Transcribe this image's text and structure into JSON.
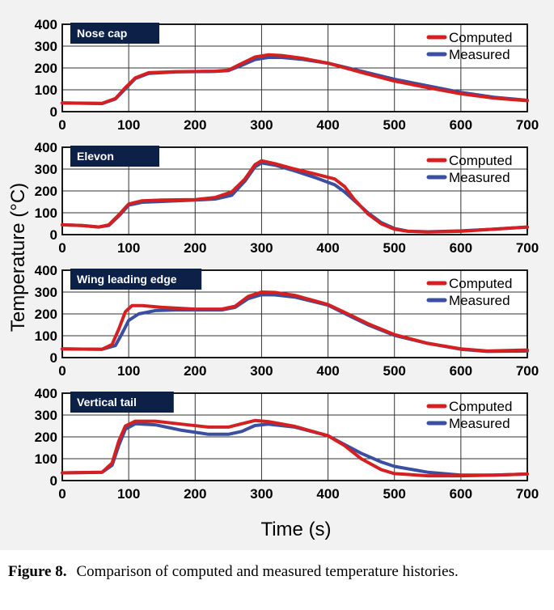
{
  "figure": {
    "ylabel": "Temperature (°C)",
    "xlabel": "Time (s)"
  },
  "caption": {
    "label": "Figure 8.",
    "text": "Comparison of computed and measured temperature histories."
  },
  "colors": {
    "computed": "#d42020",
    "measured": "#3a4fa0",
    "tag_bg": "#0d2148"
  },
  "chart_data": [
    {
      "type": "line",
      "tag": "Nose cap",
      "xlim": [
        0,
        700
      ],
      "ylim": [
        0,
        400
      ],
      "x_ticks": [
        0,
        100,
        200,
        300,
        400,
        500,
        600,
        700
      ],
      "y_ticks": [
        0,
        100,
        200,
        300,
        400
      ],
      "grid": true,
      "legend": "top-right",
      "series": [
        {
          "name": "Computed",
          "color": "#d42020",
          "points": [
            [
              0,
              40
            ],
            [
              60,
              38
            ],
            [
              80,
              60
            ],
            [
              95,
              110
            ],
            [
              110,
              155
            ],
            [
              130,
              178
            ],
            [
              170,
              183
            ],
            [
              230,
              185
            ],
            [
              250,
              190
            ],
            [
              270,
              220
            ],
            [
              290,
              250
            ],
            [
              310,
              260
            ],
            [
              330,
              257
            ],
            [
              360,
              245
            ],
            [
              400,
              222
            ],
            [
              450,
              180
            ],
            [
              500,
              140
            ],
            [
              550,
              110
            ],
            [
              600,
              82
            ],
            [
              650,
              62
            ],
            [
              700,
              50
            ]
          ]
        },
        {
          "name": "Measured",
          "color": "#3a4fa0",
          "points": [
            [
              0,
              40
            ],
            [
              60,
              37
            ],
            [
              80,
              58
            ],
            [
              95,
              105
            ],
            [
              110,
              152
            ],
            [
              130,
              175
            ],
            [
              170,
              182
            ],
            [
              230,
              184
            ],
            [
              250,
              188
            ],
            [
              270,
              212
            ],
            [
              290,
              238
            ],
            [
              310,
              248
            ],
            [
              330,
              248
            ],
            [
              360,
              240
            ],
            [
              400,
              222
            ],
            [
              450,
              185
            ],
            [
              500,
              148
            ],
            [
              550,
              118
            ],
            [
              600,
              88
            ],
            [
              650,
              66
            ],
            [
              700,
              52
            ]
          ]
        }
      ]
    },
    {
      "type": "line",
      "tag": "Elevon",
      "xlim": [
        0,
        700
      ],
      "ylim": [
        0,
        400
      ],
      "x_ticks": [
        0,
        100,
        200,
        300,
        400,
        500,
        600,
        700
      ],
      "y_ticks": [
        0,
        100,
        200,
        300,
        400
      ],
      "grid": true,
      "legend": "top-right",
      "series": [
        {
          "name": "Computed",
          "color": "#d42020",
          "points": [
            [
              0,
              45
            ],
            [
              30,
              42
            ],
            [
              55,
              35
            ],
            [
              70,
              45
            ],
            [
              85,
              90
            ],
            [
              100,
              140
            ],
            [
              120,
              155
            ],
            [
              150,
              158
            ],
            [
              200,
              160
            ],
            [
              230,
              170
            ],
            [
              255,
              195
            ],
            [
              275,
              255
            ],
            [
              290,
              320
            ],
            [
              300,
              338
            ],
            [
              320,
              325
            ],
            [
              350,
              300
            ],
            [
              380,
              278
            ],
            [
              410,
              255
            ],
            [
              425,
              220
            ],
            [
              440,
              160
            ],
            [
              460,
              95
            ],
            [
              480,
              50
            ],
            [
              500,
              25
            ],
            [
              520,
              15
            ],
            [
              550,
              12
            ],
            [
              600,
              15
            ],
            [
              650,
              25
            ],
            [
              700,
              35
            ]
          ]
        },
        {
          "name": "Measured",
          "color": "#3a4fa0",
          "points": [
            [
              0,
              45
            ],
            [
              30,
              42
            ],
            [
              55,
              35
            ],
            [
              70,
              42
            ],
            [
              85,
              85
            ],
            [
              100,
              135
            ],
            [
              120,
              148
            ],
            [
              150,
              152
            ],
            [
              200,
              158
            ],
            [
              230,
              163
            ],
            [
              255,
              180
            ],
            [
              275,
              245
            ],
            [
              290,
              310
            ],
            [
              300,
              328
            ],
            [
              320,
              318
            ],
            [
              350,
              292
            ],
            [
              380,
              262
            ],
            [
              410,
              228
            ],
            [
              425,
              195
            ],
            [
              440,
              155
            ],
            [
              460,
              100
            ],
            [
              480,
              55
            ],
            [
              500,
              28
            ],
            [
              520,
              16
            ],
            [
              550,
              13
            ],
            [
              600,
              17
            ],
            [
              650,
              25
            ],
            [
              700,
              35
            ]
          ]
        }
      ]
    },
    {
      "type": "line",
      "tag": "Wing leading edge",
      "xlim": [
        0,
        700
      ],
      "ylim": [
        0,
        400
      ],
      "x_ticks": [
        0,
        100,
        200,
        300,
        400,
        500,
        600,
        700
      ],
      "y_ticks": [
        0,
        100,
        200,
        300,
        400
      ],
      "grid": true,
      "legend": "top-right",
      "series": [
        {
          "name": "Computed",
          "color": "#d42020",
          "points": [
            [
              0,
              40
            ],
            [
              60,
              38
            ],
            [
              75,
              60
            ],
            [
              85,
              130
            ],
            [
              95,
              210
            ],
            [
              105,
              238
            ],
            [
              120,
              238
            ],
            [
              150,
              230
            ],
            [
              200,
              222
            ],
            [
              240,
              222
            ],
            [
              260,
              235
            ],
            [
              280,
              280
            ],
            [
              300,
              300
            ],
            [
              320,
              298
            ],
            [
              350,
              285
            ],
            [
              400,
              243
            ],
            [
              430,
              200
            ],
            [
              460,
              155
            ],
            [
              500,
              105
            ],
            [
              550,
              65
            ],
            [
              600,
              40
            ],
            [
              640,
              30
            ],
            [
              700,
              35
            ]
          ]
        },
        {
          "name": "Measured",
          "color": "#3a4fa0",
          "points": [
            [
              0,
              40
            ],
            [
              60,
              38
            ],
            [
              80,
              55
            ],
            [
              90,
              110
            ],
            [
              100,
              170
            ],
            [
              115,
              200
            ],
            [
              140,
              215
            ],
            [
              170,
              218
            ],
            [
              200,
              218
            ],
            [
              240,
              218
            ],
            [
              260,
              230
            ],
            [
              280,
              270
            ],
            [
              300,
              288
            ],
            [
              320,
              287
            ],
            [
              350,
              277
            ],
            [
              400,
              240
            ],
            [
              430,
              195
            ],
            [
              460,
              150
            ],
            [
              500,
              102
            ],
            [
              550,
              65
            ],
            [
              600,
              38
            ],
            [
              640,
              28
            ],
            [
              700,
              30
            ]
          ]
        }
      ]
    },
    {
      "type": "line",
      "tag": "Vertical tail",
      "xlim": [
        0,
        700
      ],
      "ylim": [
        0,
        400
      ],
      "x_ticks": [
        0,
        100,
        200,
        300,
        400,
        500,
        600,
        700
      ],
      "y_ticks": [
        0,
        100,
        200,
        300,
        400
      ],
      "grid": true,
      "legend": "top-right",
      "series": [
        {
          "name": "Computed",
          "color": "#d42020",
          "points": [
            [
              0,
              35
            ],
            [
              60,
              38
            ],
            [
              75,
              80
            ],
            [
              85,
              180
            ],
            [
              95,
              250
            ],
            [
              110,
              272
            ],
            [
              140,
              272
            ],
            [
              180,
              258
            ],
            [
              220,
              245
            ],
            [
              250,
              245
            ],
            [
              270,
              260
            ],
            [
              290,
              275
            ],
            [
              310,
              270
            ],
            [
              350,
              248
            ],
            [
              400,
              205
            ],
            [
              425,
              160
            ],
            [
              450,
              100
            ],
            [
              480,
              50
            ],
            [
              500,
              32
            ],
            [
              550,
              22
            ],
            [
              600,
              22
            ],
            [
              650,
              25
            ],
            [
              700,
              30
            ]
          ]
        },
        {
          "name": "Measured",
          "color": "#3a4fa0",
          "points": [
            [
              0,
              35
            ],
            [
              60,
              38
            ],
            [
              75,
              70
            ],
            [
              85,
              160
            ],
            [
              95,
              235
            ],
            [
              110,
              260
            ],
            [
              140,
              255
            ],
            [
              180,
              230
            ],
            [
              220,
              212
            ],
            [
              250,
              212
            ],
            [
              270,
              225
            ],
            [
              290,
              252
            ],
            [
              310,
              258
            ],
            [
              350,
              245
            ],
            [
              400,
              205
            ],
            [
              425,
              165
            ],
            [
              450,
              125
            ],
            [
              480,
              85
            ],
            [
              500,
              65
            ],
            [
              550,
              38
            ],
            [
              600,
              25
            ],
            [
              650,
              25
            ],
            [
              700,
              30
            ]
          ]
        }
      ]
    }
  ]
}
